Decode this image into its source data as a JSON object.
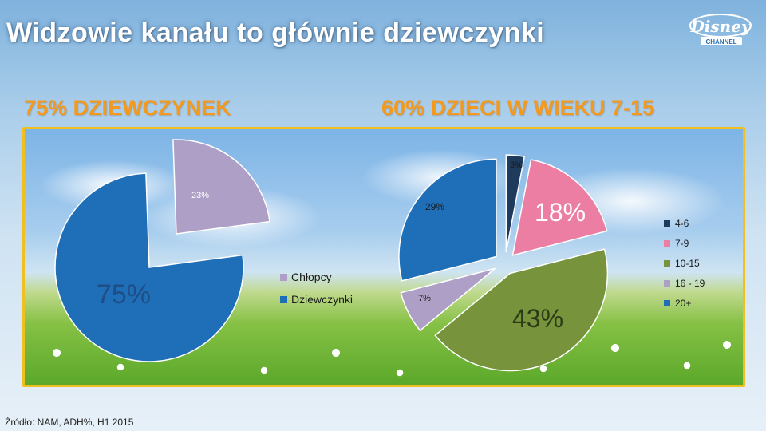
{
  "title": "Widzowie kanału to głównie dziewczynki",
  "logo_text": "DISNEY CHANNEL",
  "headline_left": "75% DZIEWCZYNEK",
  "headline_right": "60% DZIECI W WIEKU 7-15",
  "source": "Źródło: NAM, ADH%, H1 2015",
  "colors": {
    "title": "#ffffff",
    "headline": "#f39a1e",
    "panel_border": "#f0c020",
    "blue": "#1f6fb8",
    "lilac": "#ad9fc6",
    "navy": "#1e3a5c",
    "pink": "#ec7ea3",
    "green": "#77933c"
  },
  "chart_data": [
    {
      "type": "pie",
      "title": "",
      "slices": [
        {
          "name": "Chłopcy",
          "value": 23,
          "label": "23%",
          "color": "#ad9fc6",
          "exploded": true
        },
        {
          "name": "Dziewczynki",
          "value": 75,
          "label": "75%",
          "color": "#1f6fb8",
          "exploded": false
        }
      ],
      "legend": {
        "position": "right",
        "entries": [
          "Chłopcy",
          "Dziewczynki"
        ]
      }
    },
    {
      "type": "pie",
      "title": "",
      "slices": [
        {
          "name": "4-6",
          "value": 3,
          "label": "3%",
          "color": "#1e3a5c"
        },
        {
          "name": "7-9",
          "value": 18,
          "label": "18%",
          "color": "#ec7ea3"
        },
        {
          "name": "10-15",
          "value": 43,
          "label": "43%",
          "color": "#77933c"
        },
        {
          "name": "16 - 19",
          "value": 7,
          "label": "7%",
          "color": "#ad9fc6"
        },
        {
          "name": "20+",
          "value": 29,
          "label": "29%",
          "color": "#1f6fb8"
        }
      ],
      "legend": {
        "position": "right",
        "entries": [
          "4-6",
          "7-9",
          "10-15",
          "16 - 19",
          "20+"
        ]
      }
    }
  ]
}
